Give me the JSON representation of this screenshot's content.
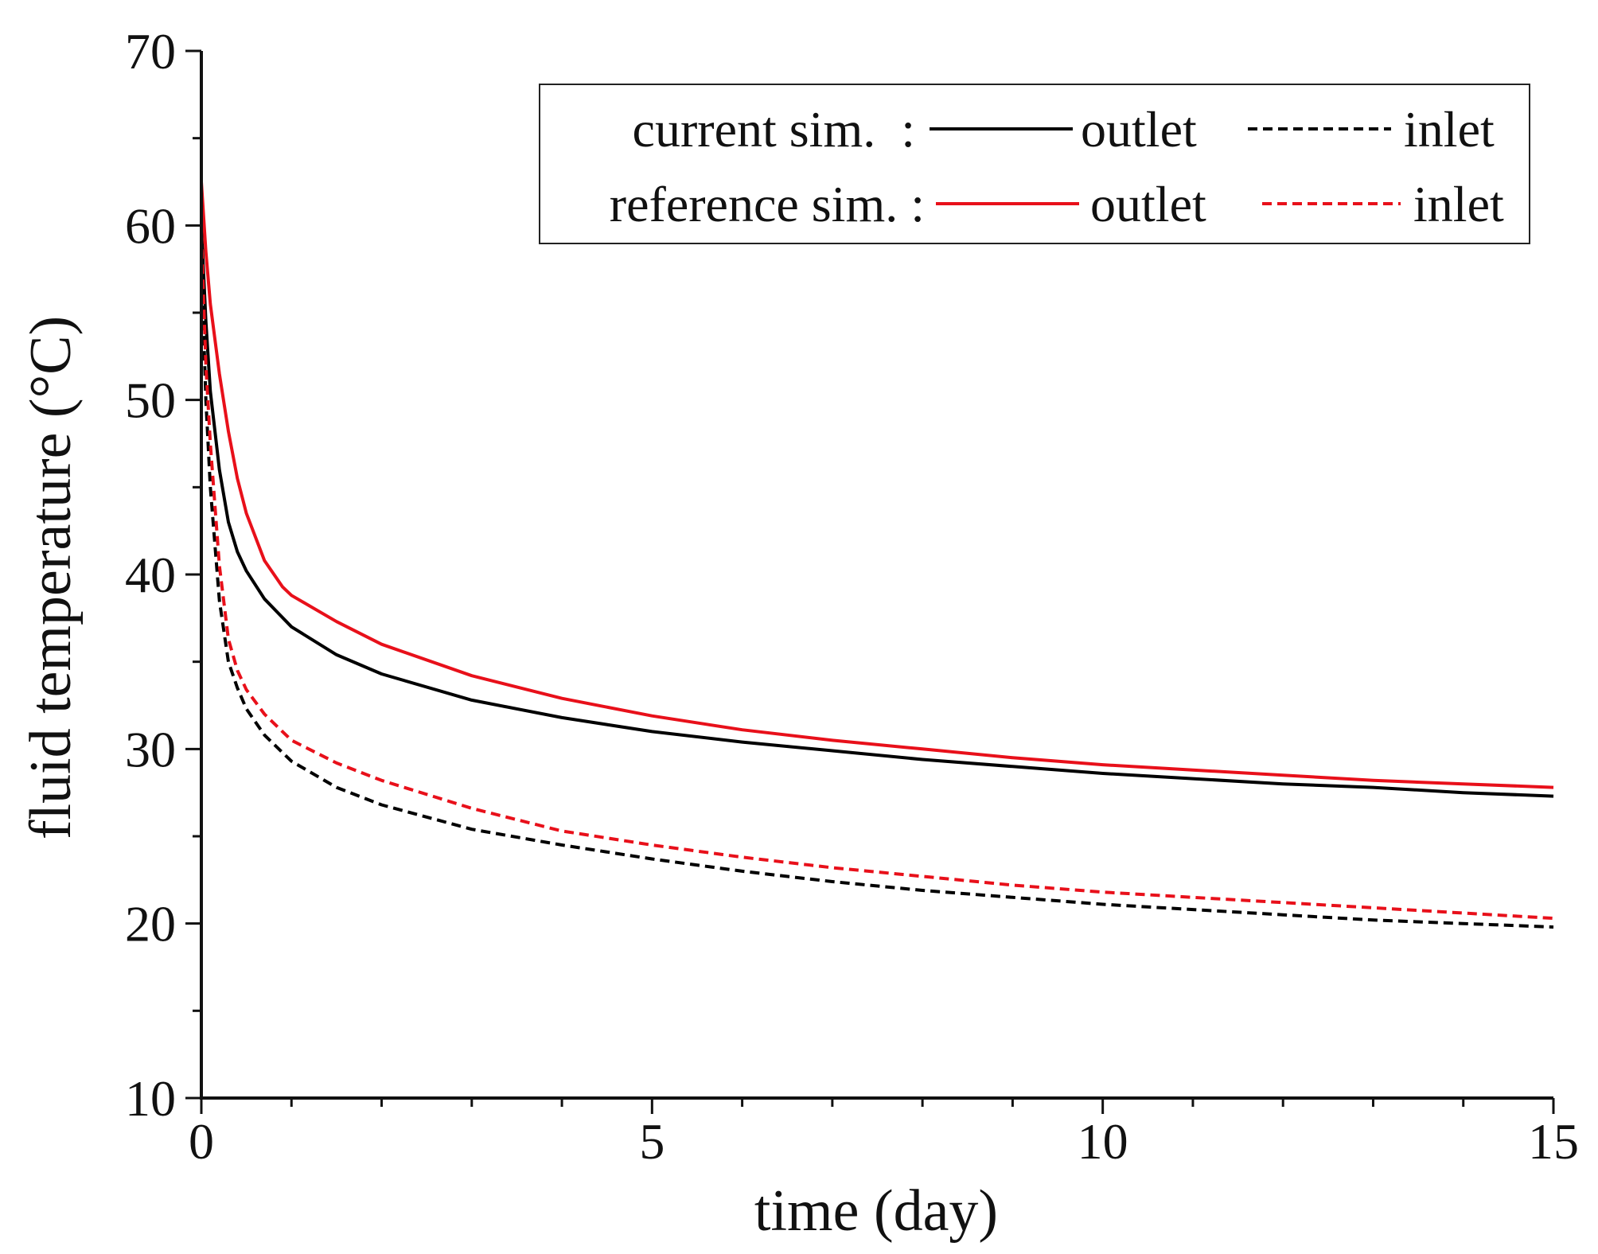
{
  "chart_data": {
    "type": "line",
    "title": "",
    "xlabel": "time (day)",
    "ylabel": "fluid temperature (°C)",
    "xlim": [
      0,
      15
    ],
    "ylim": [
      10,
      70
    ],
    "xticks": [
      0,
      5,
      10,
      15
    ],
    "yticks": [
      10,
      20,
      30,
      40,
      50,
      60,
      70
    ],
    "x_minor_step": 1,
    "y_minor_step": 5,
    "grid": false,
    "legend": {
      "placement": "top-right",
      "rows": [
        {
          "label": "current sim.  :",
          "entries": [
            {
              "series": 0,
              "text": "outlet"
            },
            {
              "series": 1,
              "text": "inlet"
            }
          ]
        },
        {
          "label": "reference sim. :",
          "entries": [
            {
              "series": 2,
              "text": "outlet"
            },
            {
              "series": 3,
              "text": "inlet"
            }
          ]
        }
      ]
    },
    "series": [
      {
        "name": "current sim. outlet",
        "color": "#000000",
        "dash": "solid",
        "x": [
          0,
          0.05,
          0.1,
          0.2,
          0.3,
          0.4,
          0.5,
          0.7,
          1,
          1.5,
          2,
          3,
          4,
          5,
          6,
          7,
          8,
          9,
          10,
          11,
          12,
          13,
          14,
          15
        ],
        "y": [
          60.0,
          54.5,
          50.5,
          46.0,
          43.0,
          41.3,
          40.2,
          38.6,
          37.0,
          35.4,
          34.3,
          32.8,
          31.8,
          31.0,
          30.4,
          29.9,
          29.4,
          29.0,
          28.6,
          28.3,
          28.0,
          27.8,
          27.5,
          27.3
        ]
      },
      {
        "name": "current sim. inlet",
        "color": "#000000",
        "dash": "dashed",
        "x": [
          0,
          0.05,
          0.1,
          0.2,
          0.3,
          0.4,
          0.5,
          0.7,
          1,
          1.5,
          2,
          3,
          4,
          5,
          6,
          7,
          8,
          9,
          10,
          11,
          12,
          13,
          14,
          15
        ],
        "y": [
          58.0,
          50.0,
          45.0,
          38.5,
          35.0,
          33.5,
          32.3,
          30.8,
          29.3,
          27.8,
          26.8,
          25.4,
          24.5,
          23.7,
          23.0,
          22.4,
          21.9,
          21.5,
          21.1,
          20.8,
          20.5,
          20.2,
          20.0,
          19.8
        ]
      },
      {
        "name": "reference sim. outlet",
        "color": "#e8101a",
        "dash": "solid",
        "x": [
          0,
          0.05,
          0.1,
          0.2,
          0.3,
          0.4,
          0.5,
          0.7,
          0.9,
          1,
          1.5,
          2,
          3,
          4,
          5,
          6,
          7,
          8,
          9,
          10,
          11,
          12,
          13,
          14,
          15
        ],
        "y": [
          62.5,
          58.5,
          55.5,
          51.5,
          48.2,
          45.5,
          43.5,
          40.8,
          39.3,
          38.8,
          37.3,
          36.0,
          34.2,
          32.9,
          31.9,
          31.1,
          30.5,
          30.0,
          29.5,
          29.1,
          28.8,
          28.5,
          28.2,
          28.0,
          27.8
        ]
      },
      {
        "name": "reference sim. inlet",
        "color": "#e8101a",
        "dash": "dashed",
        "x": [
          0,
          0.05,
          0.1,
          0.2,
          0.3,
          0.4,
          0.5,
          0.7,
          1,
          1.5,
          2,
          3,
          4,
          5,
          6,
          7,
          8,
          9,
          10,
          11,
          12,
          13,
          14,
          15
        ],
        "y": [
          59.5,
          52.0,
          47.5,
          40.5,
          36.3,
          34.5,
          33.4,
          32.0,
          30.5,
          29.2,
          28.2,
          26.6,
          25.3,
          24.5,
          23.8,
          23.2,
          22.7,
          22.2,
          21.8,
          21.5,
          21.2,
          20.9,
          20.6,
          20.3
        ]
      }
    ]
  }
}
